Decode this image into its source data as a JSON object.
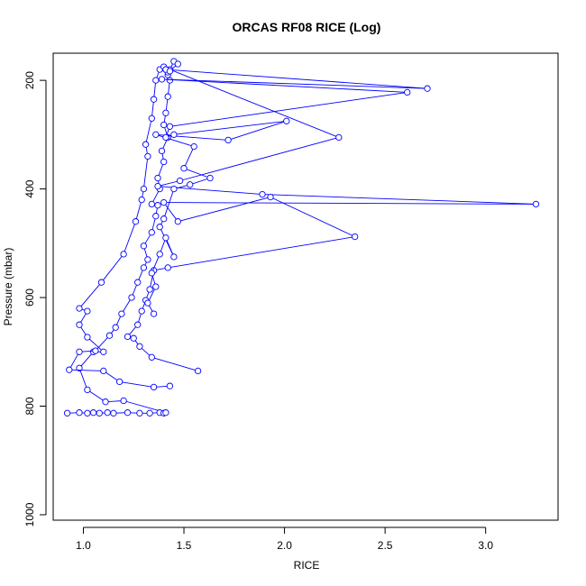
{
  "chart_data": {
    "type": "line",
    "title": "ORCAS RF08 RICE (Log)",
    "xlabel": "RICE",
    "ylabel": "Pressure (mbar)",
    "xlim": [
      0.85,
      3.36
    ],
    "ylim": [
      1010,
      150
    ],
    "y_reversed": true,
    "x_ticks": [
      1.0,
      1.5,
      2.0,
      2.5,
      3.0
    ],
    "x_tick_labels": [
      "1.0",
      "1.5",
      "2.0",
      "2.5",
      "3.0"
    ],
    "y_ticks": [
      200,
      400,
      600,
      800,
      1000
    ],
    "y_tick_labels": [
      "200",
      "400",
      "600",
      "800",
      "1000"
    ],
    "grid": false,
    "series_color": "#0000ff",
    "series": [
      {
        "markers": "open-circle",
        "points": [
          [
            0.92,
            813
          ],
          [
            0.98,
            812
          ],
          [
            1.02,
            813
          ],
          [
            1.05,
            812
          ],
          [
            1.08,
            813
          ],
          [
            1.12,
            812
          ],
          [
            1.15,
            813
          ],
          [
            1.22,
            812
          ],
          [
            1.28,
            813
          ],
          [
            1.33,
            813
          ],
          [
            1.38,
            812
          ],
          [
            1.4,
            813
          ],
          [
            1.41,
            812
          ],
          [
            1.2,
            790
          ],
          [
            1.11,
            792
          ],
          [
            1.02,
            770
          ],
          [
            0.98,
            730
          ],
          [
            1.05,
            700
          ],
          [
            1.1,
            700
          ],
          [
            1.02,
            673
          ],
          [
            0.98,
            650
          ],
          [
            1.02,
            625
          ],
          [
            0.98,
            620
          ],
          [
            1.09,
            572
          ],
          [
            1.2,
            520
          ],
          [
            1.26,
            460
          ],
          [
            1.29,
            420
          ],
          [
            1.3,
            400
          ],
          [
            1.32,
            340
          ],
          [
            1.31,
            318
          ],
          [
            1.34,
            270
          ],
          [
            1.35,
            235
          ],
          [
            1.36,
            200
          ],
          [
            1.38,
            180
          ],
          [
            1.4,
            175
          ]
        ]
      },
      {
        "markers": "open-circle",
        "points": [
          [
            1.43,
            763
          ],
          [
            1.35,
            765
          ],
          [
            1.18,
            755
          ],
          [
            1.1,
            735
          ],
          [
            0.93,
            733
          ],
          [
            0.98,
            700
          ],
          [
            1.06,
            698
          ],
          [
            1.13,
            670
          ],
          [
            1.16,
            655
          ],
          [
            1.19,
            630
          ],
          [
            1.24,
            600
          ],
          [
            1.27,
            572
          ],
          [
            1.3,
            545
          ],
          [
            1.32,
            530
          ],
          [
            1.3,
            505
          ],
          [
            1.34,
            480
          ],
          [
            1.36,
            450
          ],
          [
            1.37,
            430
          ],
          [
            1.34,
            428
          ],
          [
            1.38,
            400
          ],
          [
            1.37,
            380
          ],
          [
            1.4,
            350
          ],
          [
            1.39,
            330
          ],
          [
            1.42,
            305
          ],
          [
            1.4,
            282
          ],
          [
            1.41,
            260
          ],
          [
            1.42,
            230
          ],
          [
            1.43,
            200
          ],
          [
            1.42,
            190
          ],
          [
            1.41,
            180
          ]
        ]
      },
      {
        "markers": "open-circle",
        "points": [
          [
            1.57,
            735
          ],
          [
            1.34,
            710
          ],
          [
            1.28,
            690
          ],
          [
            1.25,
            675
          ],
          [
            1.22,
            672
          ],
          [
            1.27,
            650
          ],
          [
            1.29,
            625
          ],
          [
            1.31,
            605
          ],
          [
            1.33,
            585
          ],
          [
            1.35,
            550
          ],
          [
            1.42,
            545
          ],
          [
            2.35,
            488
          ],
          [
            1.93,
            415
          ],
          [
            1.47,
            460
          ],
          [
            1.4,
            425
          ],
          [
            3.25,
            428
          ],
          [
            1.89,
            410
          ],
          [
            1.37,
            395
          ],
          [
            1.48,
            385
          ],
          [
            2.27,
            305
          ],
          [
            1.43,
            180
          ],
          [
            1.45,
            165
          ],
          [
            1.47,
            170
          ],
          [
            1.42,
            185
          ]
        ]
      },
      {
        "markers": "open-circle",
        "points": [
          [
            1.35,
            630
          ],
          [
            1.32,
            610
          ],
          [
            1.36,
            580
          ],
          [
            1.34,
            555
          ],
          [
            1.38,
            520
          ],
          [
            1.41,
            490
          ],
          [
            1.45,
            525
          ],
          [
            1.38,
            470
          ],
          [
            1.4,
            455
          ],
          [
            1.45,
            400
          ],
          [
            1.53,
            392
          ],
          [
            1.63,
            380
          ],
          [
            1.5,
            362
          ],
          [
            1.55,
            322
          ],
          [
            1.36,
            300
          ],
          [
            1.72,
            310
          ],
          [
            2.01,
            275
          ],
          [
            1.45,
            300
          ],
          [
            1.41,
            305
          ],
          [
            1.43,
            285
          ],
          [
            2.61,
            222
          ],
          [
            1.39,
            198
          ],
          [
            2.71,
            215
          ],
          [
            1.41,
            180
          ],
          [
            1.43,
            183
          ]
        ]
      }
    ]
  }
}
